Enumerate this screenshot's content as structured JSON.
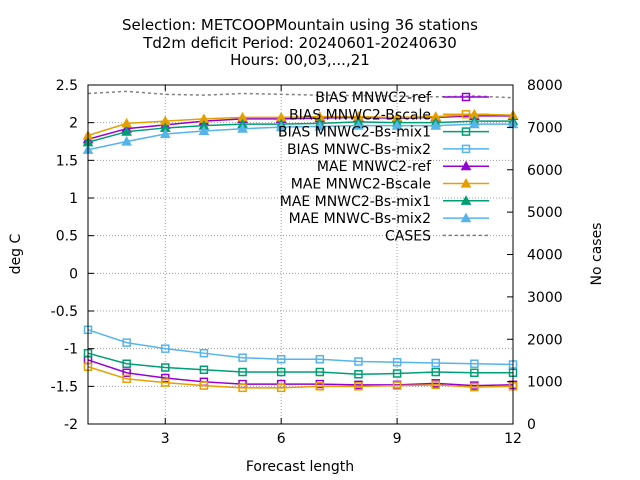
{
  "chart_data": {
    "type": "line",
    "title_lines": [
      "Selection: METCOOPMountain using    36 stations",
      "Td2m deficit   Period: 20240601-20240630",
      "Hours: 00,03,...,21"
    ],
    "xlabel": "Forecast length",
    "ylabel": "deg C",
    "y2label": "No cases",
    "xlim": [
      1,
      12
    ],
    "ylim": [
      -2,
      2.5
    ],
    "y2lim": [
      0,
      8000
    ],
    "xticks": [
      3,
      6,
      9,
      12
    ],
    "yticks": [
      -2,
      -1.5,
      -1,
      -0.5,
      0,
      0.5,
      1,
      1.5,
      2,
      2.5
    ],
    "yticklabels": [
      "-2",
      "-1.5",
      "-1",
      "-0.5",
      "0",
      "0.5",
      "1",
      "1.5",
      "2",
      "2.5"
    ],
    "y2ticks": [
      0,
      1000,
      2000,
      3000,
      4000,
      5000,
      6000,
      7000,
      8000
    ],
    "grid": true,
    "legend_position": "top-right",
    "x": [
      1,
      2,
      3,
      4,
      5,
      6,
      7,
      8,
      9,
      10,
      11,
      12
    ],
    "series": [
      {
        "name": "BIAS MNWC2-ref",
        "marker": "square-open",
        "color": "#9400d3",
        "values": [
          -1.15,
          -1.32,
          -1.39,
          -1.44,
          -1.47,
          -1.47,
          -1.47,
          -1.48,
          -1.48,
          -1.46,
          -1.49,
          -1.48
        ]
      },
      {
        "name": "BIAS MNWC2-Bscale",
        "marker": "square-open",
        "color": "#e69f00",
        "values": [
          -1.24,
          -1.4,
          -1.45,
          -1.49,
          -1.52,
          -1.52,
          -1.5,
          -1.5,
          -1.49,
          -1.48,
          -1.51,
          -1.5
        ]
      },
      {
        "name": "BIAS MNWC2-Bs-mix1",
        "marker": "square-open",
        "color": "#009e73",
        "values": [
          -1.06,
          -1.2,
          -1.25,
          -1.28,
          -1.31,
          -1.31,
          -1.31,
          -1.34,
          -1.33,
          -1.31,
          -1.32,
          -1.32
        ]
      },
      {
        "name": "BIAS MNWC-Bs-mix2",
        "marker": "square-open",
        "color": "#56b4e9",
        "values": [
          -0.75,
          -0.92,
          -1.0,
          -1.06,
          -1.12,
          -1.14,
          -1.14,
          -1.17,
          -1.18,
          -1.19,
          -1.2,
          -1.21
        ]
      },
      {
        "name": "MAE MNWC2-ref",
        "marker": "triangle",
        "color": "#9400d3",
        "values": [
          1.78,
          1.92,
          1.97,
          2.02,
          2.05,
          2.05,
          2.06,
          2.07,
          2.06,
          2.07,
          2.09,
          2.09
        ]
      },
      {
        "name": "MAE MNWC2-Bscale",
        "marker": "triangle",
        "color": "#e69f00",
        "values": [
          1.83,
          1.99,
          2.02,
          2.05,
          2.07,
          2.07,
          2.08,
          2.08,
          2.07,
          2.08,
          2.11,
          2.1
        ]
      },
      {
        "name": "MAE MNWC2-Bs-mix1",
        "marker": "triangle",
        "color": "#009e73",
        "values": [
          1.74,
          1.88,
          1.93,
          1.96,
          1.98,
          1.98,
          1.99,
          2.01,
          2.0,
          2.0,
          2.02,
          2.02
        ]
      },
      {
        "name": "MAE MNWC-Bs-mix2",
        "marker": "triangle",
        "color": "#56b4e9",
        "values": [
          1.64,
          1.75,
          1.85,
          1.89,
          1.92,
          1.94,
          1.95,
          1.96,
          1.96,
          1.96,
          1.98,
          1.98
        ]
      }
    ],
    "cases": {
      "name": "CASES",
      "color": "#808080",
      "axis": "y2",
      "values": [
        7800,
        7850,
        7780,
        7760,
        7800,
        7780,
        7760,
        7750,
        7740,
        7720,
        7740,
        7700
      ]
    }
  }
}
